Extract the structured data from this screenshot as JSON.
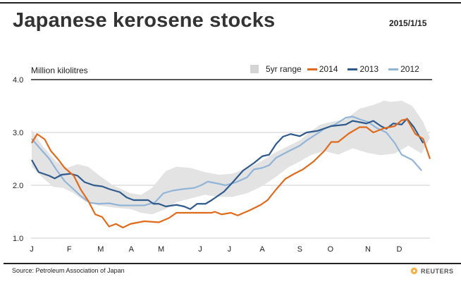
{
  "header": {
    "title": "Japanese kerosene stocks",
    "date": "2015/1/15"
  },
  "footer": {
    "source": "Source: Petroleum Association of Japan",
    "brand": "REUTERS"
  },
  "colors": {
    "s2014": "#e06a1b",
    "s2013": "#2f5a8c",
    "s2012": "#92b4d8",
    "band": "#e3e3e3",
    "grid": "#cccccc"
  },
  "chart_data": {
    "type": "line",
    "title": "Japanese kerosene stocks",
    "ylabel": "Million kilolitres",
    "xlabel": "",
    "ylim": [
      1.0,
      4.0
    ],
    "xlim_weeks": [
      0,
      52
    ],
    "y_ticks": [
      "4.0",
      "3.0",
      "2.0",
      "1.0"
    ],
    "y_tick_values": [
      4.0,
      3.0,
      2.0,
      1.0
    ],
    "x_tick_labels": [
      "J",
      "F",
      "M",
      "A",
      "M",
      "J",
      "J",
      "A",
      "S",
      "O",
      "N",
      "D"
    ],
    "x_tick_weeks": [
      0,
      4.9,
      9.0,
      13.0,
      16.9,
      22.0,
      25.8,
      30.1,
      35.0,
      39.0,
      43.9,
      48.0
    ],
    "grid": true,
    "legend": {
      "position": "top-right",
      "entries": [
        "5yr range",
        "2014",
        "2013",
        "2012"
      ]
    },
    "band": {
      "name": "5yr range",
      "upper": [
        [
          0,
          3.05
        ],
        [
          1.4,
          2.75
        ],
        [
          3.2,
          2.45
        ],
        [
          4.6,
          2.33
        ],
        [
          6.0,
          2.4
        ],
        [
          7.4,
          2.35
        ],
        [
          8.7,
          2.2
        ],
        [
          10.6,
          2.0
        ],
        [
          12.9,
          1.85
        ],
        [
          14.3,
          1.82
        ],
        [
          15.7,
          1.95
        ],
        [
          17.5,
          2.27
        ],
        [
          18.9,
          2.35
        ],
        [
          20.7,
          2.33
        ],
        [
          22.6,
          2.25
        ],
        [
          24.4,
          2.2
        ],
        [
          26.2,
          2.22
        ],
        [
          28.1,
          2.32
        ],
        [
          29.9,
          2.45
        ],
        [
          31.8,
          2.62
        ],
        [
          33.6,
          2.75
        ],
        [
          35.0,
          2.85
        ],
        [
          36.4,
          3.02
        ],
        [
          37.7,
          3.15
        ],
        [
          39.1,
          3.2
        ],
        [
          41.0,
          3.25
        ],
        [
          42.8,
          3.45
        ],
        [
          44.6,
          3.52
        ],
        [
          46.0,
          3.6
        ],
        [
          46.9,
          3.58
        ],
        [
          48.3,
          3.6
        ],
        [
          49.7,
          3.5
        ],
        [
          51.1,
          3.2
        ],
        [
          52,
          2.9
        ]
      ],
      "lower": [
        [
          0,
          2.35
        ],
        [
          1.4,
          2.15
        ],
        [
          2.8,
          1.97
        ],
        [
          4.1,
          1.95
        ],
        [
          5.5,
          1.85
        ],
        [
          6.9,
          1.7
        ],
        [
          8.7,
          1.62
        ],
        [
          10.6,
          1.58
        ],
        [
          12.9,
          1.55
        ],
        [
          14.3,
          1.48
        ],
        [
          15.7,
          1.45
        ],
        [
          17.5,
          1.55
        ],
        [
          18.9,
          1.68
        ],
        [
          20.7,
          1.75
        ],
        [
          22.6,
          1.82
        ],
        [
          24.4,
          1.78
        ],
        [
          26.2,
          1.78
        ],
        [
          28.1,
          1.85
        ],
        [
          29.9,
          1.97
        ],
        [
          31.8,
          2.15
        ],
        [
          33.6,
          2.35
        ],
        [
          35.0,
          2.45
        ],
        [
          36.4,
          2.57
        ],
        [
          38.2,
          2.65
        ],
        [
          40.0,
          2.58
        ],
        [
          41.9,
          2.7
        ],
        [
          43.7,
          2.62
        ],
        [
          45.5,
          2.57
        ],
        [
          47.4,
          2.6
        ],
        [
          49.2,
          2.75
        ],
        [
          50.9,
          2.6
        ],
        [
          52,
          2.9
        ]
      ]
    },
    "series": [
      {
        "name": "2014",
        "color": "#e06a1b",
        "points": [
          [
            0,
            2.8
          ],
          [
            0.7,
            2.97
          ],
          [
            1.7,
            2.87
          ],
          [
            2.5,
            2.65
          ],
          [
            3.4,
            2.5
          ],
          [
            4.3,
            2.33
          ],
          [
            5.5,
            2.18
          ],
          [
            6.4,
            1.92
          ],
          [
            7.4,
            1.7
          ],
          [
            8.3,
            1.45
          ],
          [
            9.2,
            1.4
          ],
          [
            10.1,
            1.22
          ],
          [
            11.0,
            1.27
          ],
          [
            11.9,
            1.2
          ],
          [
            12.9,
            1.27
          ],
          [
            14.7,
            1.32
          ],
          [
            16.6,
            1.3
          ],
          [
            17.9,
            1.38
          ],
          [
            18.9,
            1.48
          ],
          [
            23.5,
            1.48
          ],
          [
            23.9,
            1.5
          ],
          [
            24.8,
            1.45
          ],
          [
            26.0,
            1.48
          ],
          [
            26.9,
            1.43
          ],
          [
            28.5,
            1.53
          ],
          [
            29.9,
            1.63
          ],
          [
            30.8,
            1.72
          ],
          [
            31.9,
            1.92
          ],
          [
            33.1,
            2.12
          ],
          [
            34.3,
            2.22
          ],
          [
            35.4,
            2.3
          ],
          [
            36.8,
            2.45
          ],
          [
            38.2,
            2.65
          ],
          [
            39.1,
            2.82
          ],
          [
            40.0,
            2.82
          ],
          [
            41.4,
            2.98
          ],
          [
            42.8,
            3.1
          ],
          [
            43.7,
            3.1
          ],
          [
            44.6,
            3.0
          ],
          [
            46.0,
            3.08
          ],
          [
            47.4,
            3.12
          ],
          [
            48.3,
            3.23
          ],
          [
            49.0,
            3.25
          ],
          [
            50.1,
            2.97
          ],
          [
            51.1,
            2.88
          ],
          [
            52,
            2.5
          ]
        ]
      },
      {
        "name": "2013",
        "color": "#2f5a8c",
        "points": [
          [
            0,
            2.48
          ],
          [
            0.9,
            2.25
          ],
          [
            2.3,
            2.18
          ],
          [
            3.0,
            2.13
          ],
          [
            3.9,
            2.2
          ],
          [
            5.1,
            2.22
          ],
          [
            6.0,
            2.18
          ],
          [
            6.9,
            2.06
          ],
          [
            8.1,
            2.0
          ],
          [
            9.2,
            1.98
          ],
          [
            10.1,
            1.93
          ],
          [
            11.5,
            1.87
          ],
          [
            12.4,
            1.77
          ],
          [
            13.3,
            1.72
          ],
          [
            15.2,
            1.72
          ],
          [
            15.9,
            1.65
          ],
          [
            16.6,
            1.65
          ],
          [
            17.5,
            1.6
          ],
          [
            18.9,
            1.63
          ],
          [
            19.9,
            1.6
          ],
          [
            20.7,
            1.55
          ],
          [
            21.6,
            1.65
          ],
          [
            22.7,
            1.65
          ],
          [
            23.5,
            1.72
          ],
          [
            25.1,
            1.88
          ],
          [
            26.2,
            2.05
          ],
          [
            27.6,
            2.28
          ],
          [
            29.0,
            2.42
          ],
          [
            30.1,
            2.55
          ],
          [
            31.0,
            2.58
          ],
          [
            31.9,
            2.78
          ],
          [
            32.8,
            2.92
          ],
          [
            33.8,
            2.97
          ],
          [
            35.0,
            2.93
          ],
          [
            35.9,
            3.0
          ],
          [
            37.3,
            3.03
          ],
          [
            39.1,
            3.12
          ],
          [
            41.0,
            3.15
          ],
          [
            41.9,
            3.22
          ],
          [
            43.0,
            3.19
          ],
          [
            43.7,
            3.17
          ],
          [
            44.6,
            3.22
          ],
          [
            45.6,
            3.12
          ],
          [
            46.3,
            3.07
          ],
          [
            47.2,
            3.17
          ],
          [
            48.3,
            3.15
          ],
          [
            49.0,
            3.26
          ],
          [
            49.9,
            3.1
          ],
          [
            51.1,
            2.8
          ]
        ]
      },
      {
        "name": "2012",
        "color": "#92b4d8",
        "points": [
          [
            0,
            2.88
          ],
          [
            1.2,
            2.68
          ],
          [
            2.3,
            2.5
          ],
          [
            3.2,
            2.3
          ],
          [
            4.3,
            2.08
          ],
          [
            5.5,
            1.92
          ],
          [
            6.4,
            1.8
          ],
          [
            7.6,
            1.67
          ],
          [
            8.7,
            1.65
          ],
          [
            10.1,
            1.66
          ],
          [
            11.5,
            1.62
          ],
          [
            13.3,
            1.62
          ],
          [
            14.7,
            1.62
          ],
          [
            16.1,
            1.68
          ],
          [
            17.2,
            1.85
          ],
          [
            18.4,
            1.9
          ],
          [
            19.8,
            1.93
          ],
          [
            21.2,
            1.95
          ],
          [
            22.1,
            2.0
          ],
          [
            23.0,
            2.07
          ],
          [
            24.4,
            2.03
          ],
          [
            25.3,
            2.0
          ],
          [
            26.7,
            2.06
          ],
          [
            28.1,
            2.15
          ],
          [
            29.0,
            2.3
          ],
          [
            30.1,
            2.33
          ],
          [
            31.0,
            2.38
          ],
          [
            31.9,
            2.52
          ],
          [
            33.6,
            2.65
          ],
          [
            35.0,
            2.75
          ],
          [
            35.9,
            2.85
          ],
          [
            37.3,
            2.98
          ],
          [
            38.2,
            3.07
          ],
          [
            39.6,
            3.15
          ],
          [
            41.0,
            3.28
          ],
          [
            41.9,
            3.3
          ],
          [
            42.8,
            3.25
          ],
          [
            43.9,
            3.2
          ],
          [
            45.1,
            3.08
          ],
          [
            46.3,
            3.0
          ],
          [
            47.4,
            2.8
          ],
          [
            48.3,
            2.58
          ],
          [
            49.7,
            2.48
          ],
          [
            50.9,
            2.28
          ]
        ]
      }
    ]
  }
}
